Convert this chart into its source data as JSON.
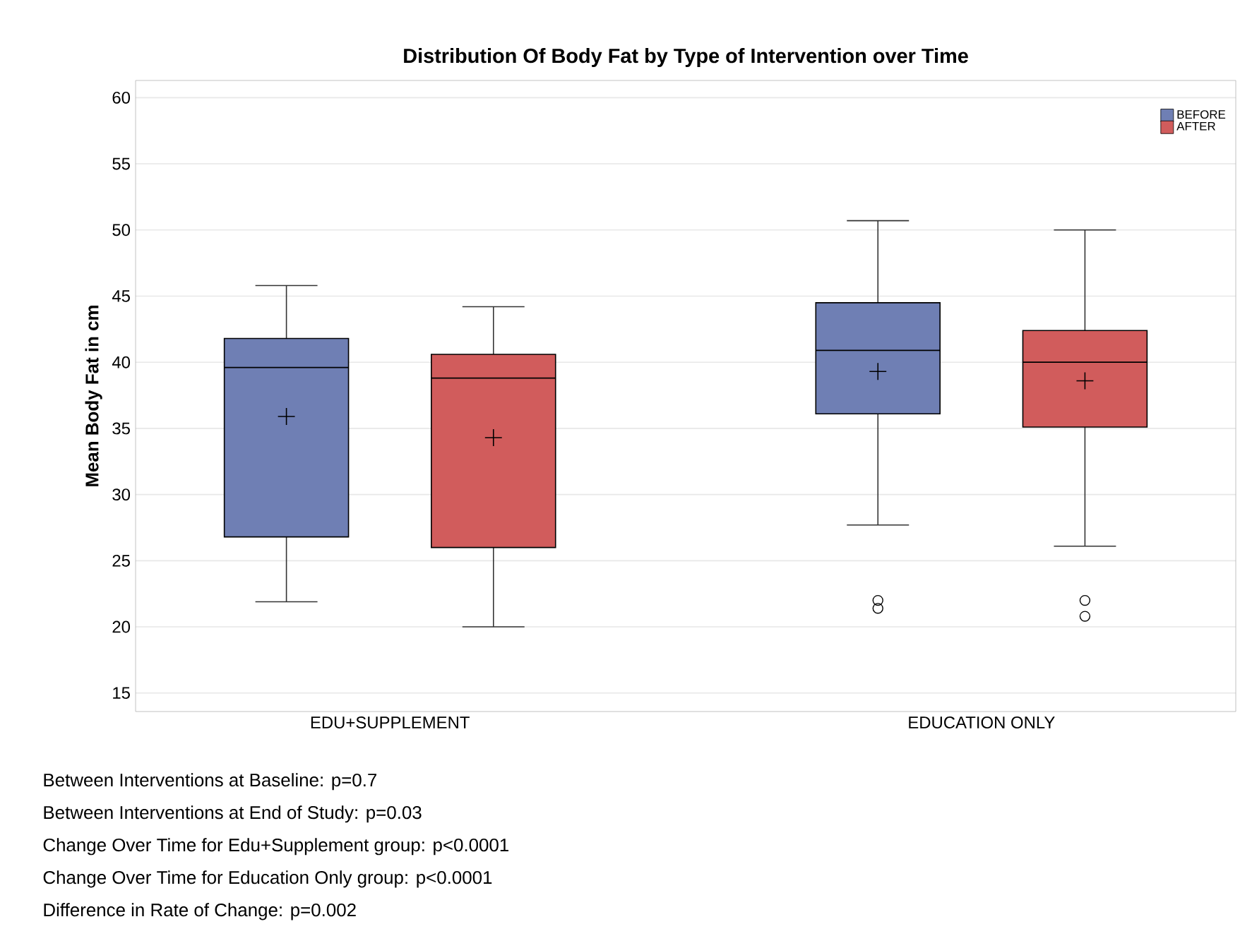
{
  "chart_data": {
    "type": "box",
    "title": "Distribution Of Body Fat by Type of Intervention over Time",
    "ylabel": "Mean Body Fat in cm",
    "categories": [
      "EDU+SUPPLEMENT",
      "EDUCATION ONLY"
    ],
    "series": [
      {
        "name": "BEFORE",
        "color": "#6f7fb4",
        "boxes": [
          {
            "low": 21.9,
            "q1": 26.8,
            "median": 39.6,
            "q3": 41.8,
            "high": 45.8,
            "mean": 35.9
          },
          {
            "low": 27.7,
            "q1": 36.1,
            "median": 40.9,
            "q3": 44.5,
            "high": 50.7,
            "mean": 39.3,
            "outliers": [
              22.0,
              21.4
            ]
          }
        ]
      },
      {
        "name": "AFTER",
        "color": "#d15c5c",
        "boxes": [
          {
            "low": 20.0,
            "q1": 26.0,
            "median": 38.8,
            "q3": 40.6,
            "high": 44.2,
            "mean": 34.3
          },
          {
            "low": 26.1,
            "q1": 35.1,
            "median": 40.0,
            "q3": 42.4,
            "high": 50.0,
            "mean": 38.6,
            "outliers": [
              22.0,
              20.8
            ]
          }
        ]
      }
    ],
    "ylim": [
      13.6,
      61.3
    ],
    "yticks": [
      15,
      20,
      25,
      30,
      35,
      40,
      45,
      50,
      55,
      60
    ],
    "grid": "y",
    "legend": "top right",
    "annotations": [
      "Between Interventions at Baseline: p=0.7",
      "Between Interventions at End of Study: p=0.03",
      "Change Over Time for Edu+Supplement group: p<0.0001",
      "Change Over Time for Education Only group: p<0.0001",
      "Difference in Rate of Change: p=0.002"
    ]
  }
}
